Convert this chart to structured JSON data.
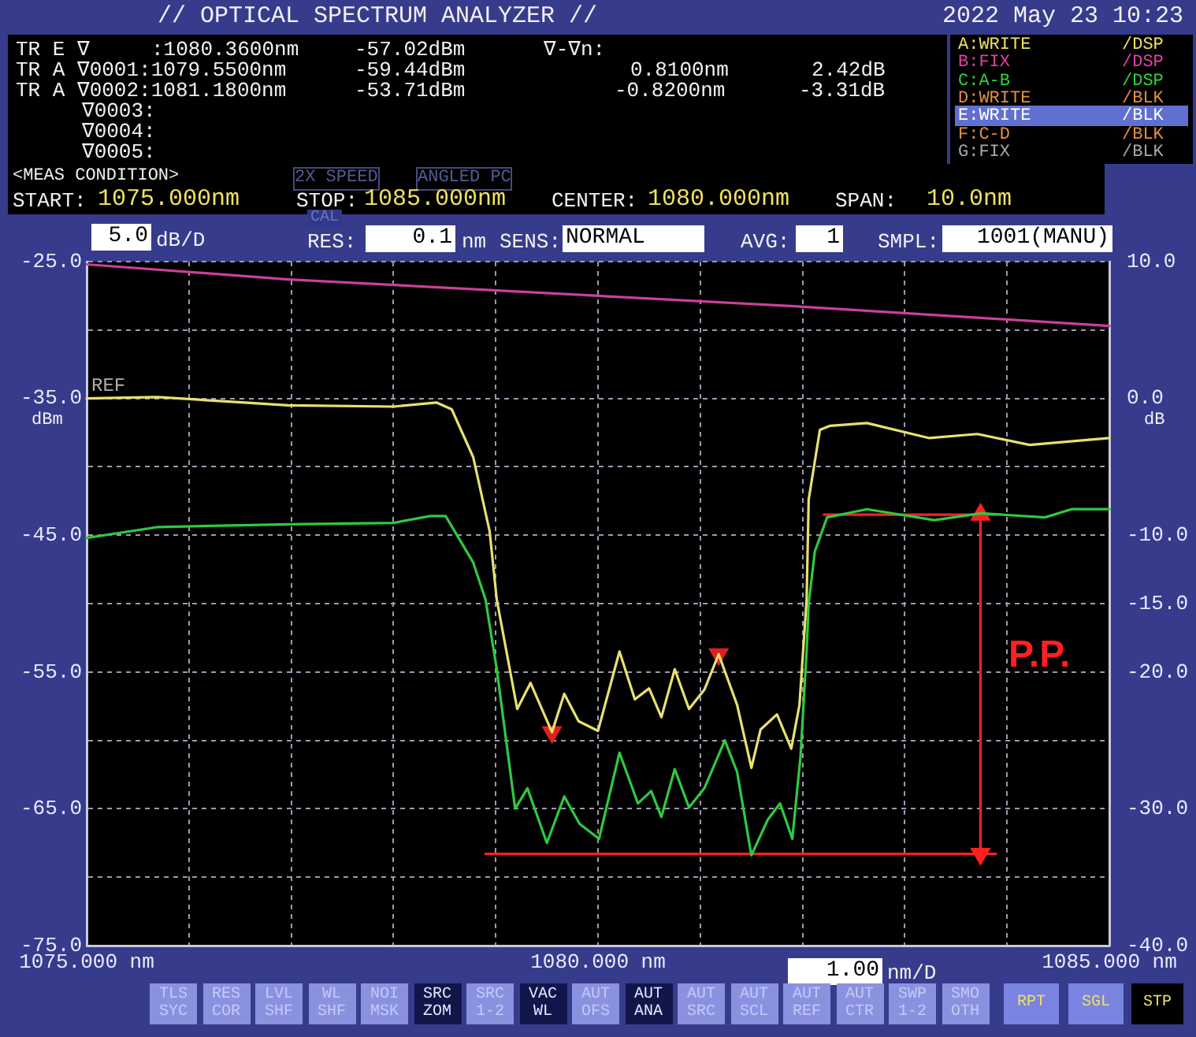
{
  "chart_data": {
    "type": "line",
    "title": "// OPTICAL SPECTRUM ANALYZER //",
    "ylabel": "dBm",
    "y2label": "dB",
    "xlim": [
      1075,
      1085
    ],
    "xticks": [
      {
        "value": 1075,
        "label": "1075.000 nm"
      },
      {
        "value": 1076,
        "label": null
      },
      {
        "value": 1077,
        "label": null
      },
      {
        "value": 1078,
        "label": null
      },
      {
        "value": 1079,
        "label": null
      },
      {
        "value": 1080,
        "label": "1080.000 nm"
      },
      {
        "value": 1081,
        "label": null
      },
      {
        "value": 1082,
        "label": null
      },
      {
        "value": 1083,
        "label": null
      },
      {
        "value": 1084,
        "label": null
      },
      {
        "value": 1085,
        "label": "1085.000 nm"
      }
    ],
    "ylim": [
      -75,
      -25
    ],
    "yticks": [
      {
        "value": -75,
        "label": "-75.0"
      },
      {
        "value": -70,
        "label": null
      },
      {
        "value": -65,
        "label": "-65.0"
      },
      {
        "value": -60,
        "label": null
      },
      {
        "value": -55,
        "label": "-55.0"
      },
      {
        "value": -50,
        "label": null
      },
      {
        "value": -45,
        "label": "-45.0"
      },
      {
        "value": -40,
        "label": null
      },
      {
        "value": -35,
        "label": "-35.0"
      },
      {
        "value": -30,
        "label": null
      },
      {
        "value": -25,
        "label": "-25.0"
      }
    ],
    "y2lim": [
      -40,
      10
    ],
    "y2ticks": [
      {
        "value": 10,
        "label": "10.0"
      },
      {
        "value": 0,
        "label": "0.0"
      },
      {
        "value": -10,
        "label": "-10.0"
      },
      {
        "value": -15,
        "label": "-15.0"
      },
      {
        "value": -20,
        "label": "-20.0"
      },
      {
        "value": -30,
        "label": "-30.0"
      },
      {
        "value": -40,
        "label": "-40.0"
      }
    ],
    "grid": true,
    "marker": "none",
    "series": [
      {
        "color": "#c8409a",
        "x": [
          1075,
          1076.97,
          1082.01,
          1085
        ],
        "values": [
          -25.2,
          -26.3,
          -28.3,
          -29.7
        ]
      },
      {
        "color": "#e8e070",
        "x": [
          1075,
          1075.69,
          1076.97,
          1078.0,
          1078.42,
          1078.57,
          1078.78,
          1078.94,
          1079.01,
          1079.21,
          1079.34,
          1079.55,
          1079.67,
          1079.81,
          1080.0,
          1080.21,
          1080.36,
          1080.5,
          1080.62,
          1080.75,
          1080.89,
          1081.04,
          1081.18,
          1081.36,
          1081.5,
          1081.59,
          1081.75,
          1081.89,
          1081.97,
          1082.04,
          1082.06,
          1082.17,
          1082.27,
          1082.63,
          1083.24,
          1083.71,
          1084.22,
          1085
        ],
        "values": [
          -35.0,
          -34.9,
          -35.5,
          -35.6,
          -35.3,
          -35.8,
          -39.3,
          -44.7,
          -49.7,
          -57.7,
          -55.8,
          -59.4,
          -56.6,
          -58.6,
          -59.3,
          -53.5,
          -57.0,
          -56.2,
          -58.3,
          -54.8,
          -57.7,
          -56.3,
          -53.7,
          -57.4,
          -62.0,
          -59.2,
          -58.1,
          -60.6,
          -57.4,
          -49.7,
          -42.4,
          -37.3,
          -37.0,
          -36.8,
          -37.9,
          -37.6,
          -38.4,
          -37.9
        ]
      },
      {
        "color": "#30c840",
        "axis": "y2",
        "x": [
          1075,
          1075.7,
          1076.97,
          1078.0,
          1078.36,
          1078.51,
          1078.78,
          1078.9,
          1079.01,
          1079.19,
          1079.31,
          1079.5,
          1079.67,
          1079.82,
          1080.01,
          1080.21,
          1080.39,
          1080.52,
          1080.62,
          1080.75,
          1080.89,
          1081.04,
          1081.24,
          1081.36,
          1081.5,
          1081.66,
          1081.78,
          1081.9,
          1081.98,
          1082.04,
          1082.06,
          1082.12,
          1082.24,
          1082.63,
          1083.29,
          1083.75,
          1084.37,
          1084.63,
          1085
        ],
        "values": [
          -10.2,
          -9.4,
          -9.2,
          -9.1,
          -8.6,
          -8.6,
          -12.0,
          -14.7,
          -19.8,
          -30.0,
          -28.5,
          -32.5,
          -29.1,
          -31.1,
          -32.2,
          -25.9,
          -29.6,
          -28.7,
          -30.6,
          -27.1,
          -29.9,
          -28.5,
          -25.0,
          -27.3,
          -33.4,
          -30.8,
          -29.6,
          -32.2,
          -26.2,
          -18.5,
          -15.0,
          -11.2,
          -8.7,
          -8.1,
          -8.9,
          -8.4,
          -8.7,
          -8.1,
          -8.1
        ]
      },
      {
        "color": "#ff2020",
        "x": [
          1082.21,
          1083.89
        ],
        "values": [
          -43.5,
          -43.5
        ]
      },
      {
        "color": "#ff2020",
        "x": [
          1078.9,
          1083.89
        ],
        "values": [
          -68.3,
          -68.3
        ]
      },
      {
        "color": "#ff2020",
        "marker": "triangle",
        "x": [
          1083.74,
          1083.74
        ],
        "values": [
          -43.5,
          -68.3
        ]
      },
      {
        "type": "scatter",
        "color": "#e02020",
        "marker": "triangle",
        "x": [
          1079.55,
          1081.18
        ],
        "values": [
          -59.4,
          -53.7
        ]
      }
    ],
    "annotations": [
      "2022 May 23 10:23",
      "TR E ∇",
      ":1080.3600nm",
      "-57.02dBm",
      "∇-∇n:",
      "TR A ∇0001:1079.5500nm",
      "-59.44dBm",
      "0.8100nm",
      "2.42dB",
      "TR A ∇0002:1081.1800nm",
      "-53.71dBm",
      "-0.8200nm",
      "-3.31dB",
      "∇0003:",
      "∇0004:",
      "∇0005:",
      "A:WRITE",
      "/DSP",
      "B:FIX",
      "/DSP",
      "C:A-B",
      "/DSP",
      "D:WRITE",
      "/BLK",
      "E:WRITE",
      "/BLK",
      "F:C-D",
      "/BLK",
      "G:FIX",
      "/BLK",
      "<MEAS CONDITION>",
      "2X SPEED",
      "ANGLED PC",
      "START:",
      "1075.000nm",
      "STOP:",
      "1085.000nm",
      "CENTER:",
      "1080.000nm",
      "SPAN:",
      "10.0nm",
      "5.0",
      "dB/D",
      "CAL",
      "RES:",
      "0.1",
      "nm",
      "SENS:",
      "NORMAL",
      "AVG:",
      "1",
      "SMPL:",
      "1001(MANU)",
      "1.00",
      "nm/D",
      "TLS SYC",
      "RES COR",
      "LVL SHF",
      "WL SHF",
      "NOI MSK",
      "SRC ZOM",
      "SRC 1-2",
      "VAC WL",
      "AUT OFS",
      "AUT ANA",
      "AUT SRC",
      "AUT SCL",
      "AUT REF",
      "AUT CTR",
      "SWP 1-2",
      "SMO OTH",
      "RPT",
      "SGL",
      "STP",
      {
        "text": "REF",
        "x": 1075,
        "y": -35
      },
      "P.P."
    ]
  }
}
